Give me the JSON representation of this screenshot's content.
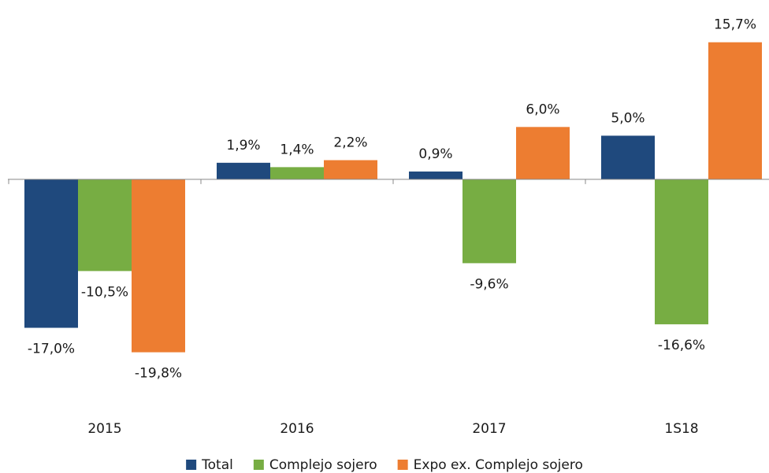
{
  "chart_data": {
    "type": "bar",
    "categories": [
      "2015",
      "2016",
      "2017",
      "1S18"
    ],
    "series": [
      {
        "name": "Total",
        "color": "#1f497d",
        "values": [
          -17.0,
          1.9,
          0.9,
          5.0
        ],
        "value_labels": [
          "-17,0%",
          "1,9%",
          "0,9%",
          "5,0%"
        ]
      },
      {
        "name": "Complejo sojero",
        "color": "#77ad43",
        "values": [
          -10.5,
          1.4,
          -9.6,
          -16.6
        ],
        "value_labels": [
          "-10,5%",
          "1,4%",
          "-9,6%",
          "-16,6%"
        ]
      },
      {
        "name": "Expo ex. Complejo sojero",
        "color": "#ed7d31",
        "values": [
          -19.8,
          2.2,
          6.0,
          15.7
        ],
        "value_labels": [
          "-19,8%",
          "2,2%",
          "6,0%",
          "15,7%"
        ]
      }
    ],
    "ylim": [
      -22,
      20
    ]
  }
}
